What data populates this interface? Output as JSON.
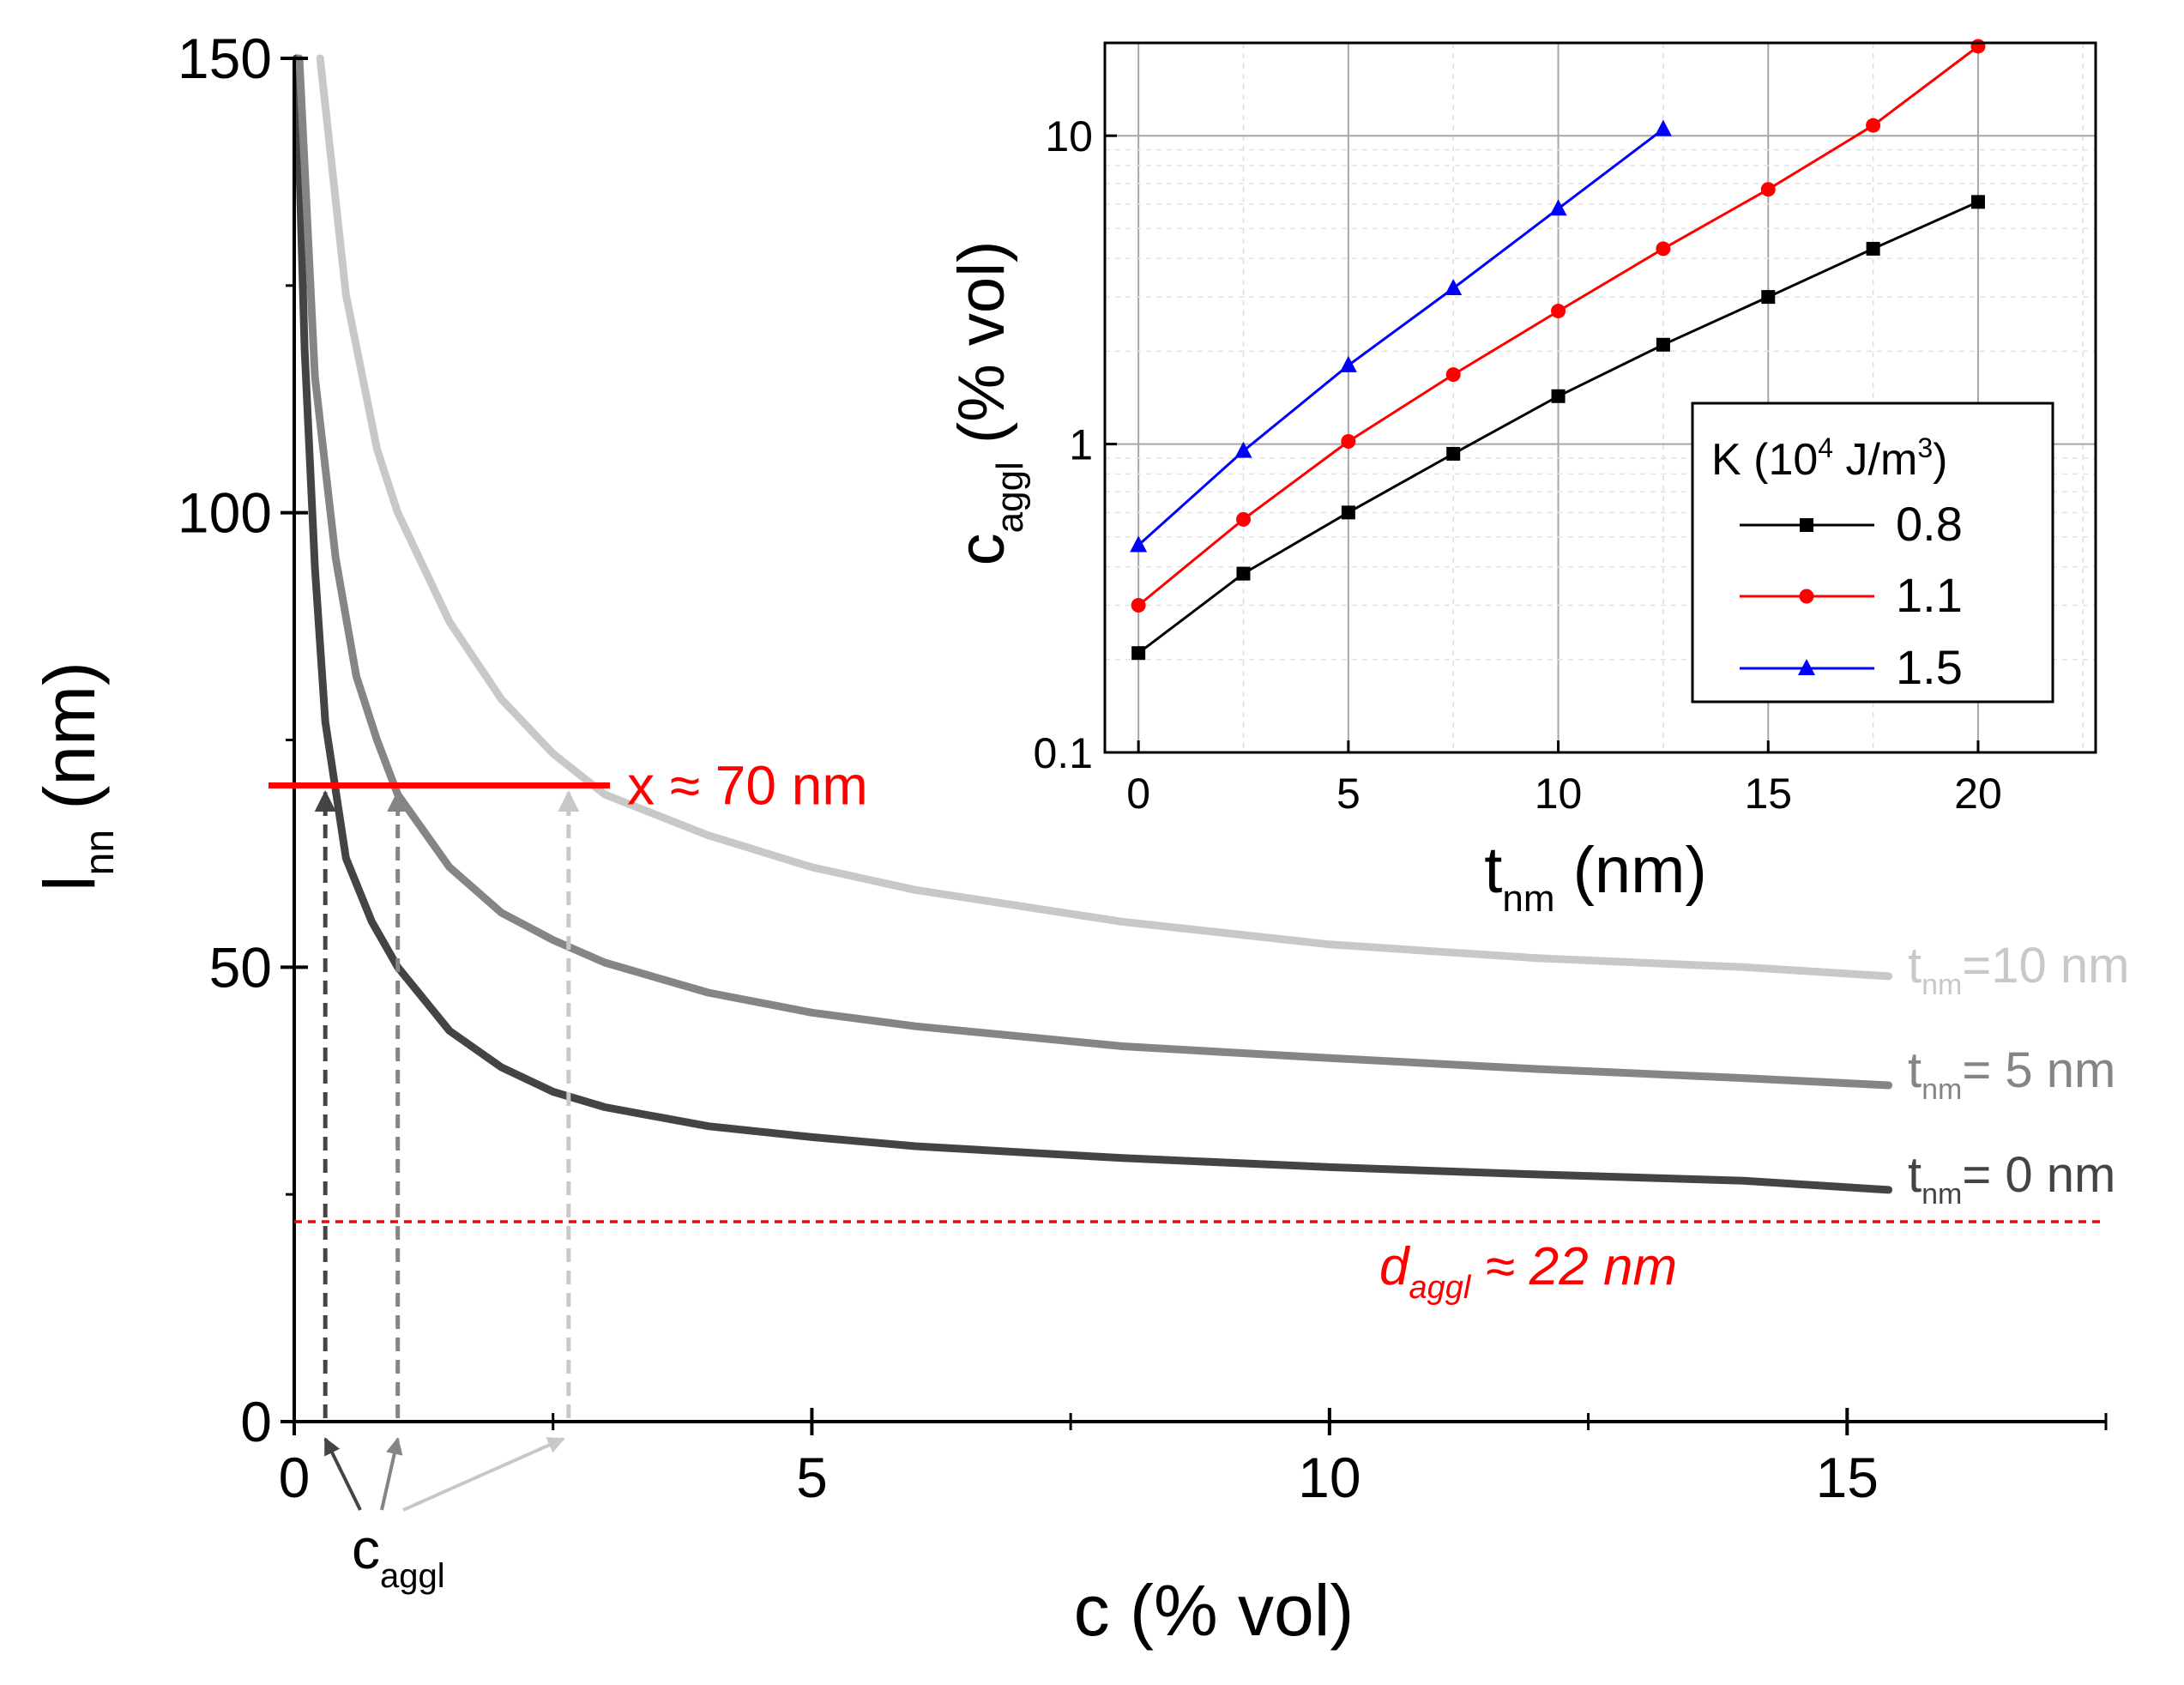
{
  "colors": {
    "curve_t0": "#444444",
    "curve_t5": "#858585",
    "curve_t10": "#c8c8c8",
    "red": "#ff0000",
    "black": "#000000",
    "blue": "#0000ff",
    "grid": "#a6a6a6"
  },
  "chart_data": [
    {
      "id": "main",
      "type": "line",
      "xlabel": {
        "main": "c (% vol)"
      },
      "ylabel": {
        "main": "l",
        "sub": "nn",
        "tail": " (nm)"
      },
      "xlim": [
        0,
        17.5
      ],
      "ylim": [
        0,
        150
      ],
      "x_ticks": [
        "0",
        "5",
        "10",
        "15"
      ],
      "x_tick_values": [
        0,
        5,
        10,
        15
      ],
      "y_ticks": [
        "0",
        "50",
        "100",
        "150"
      ],
      "y_tick_values": [
        0,
        50,
        100,
        150
      ],
      "series": [
        {
          "name": "t_nm = 0 nm",
          "label_main": "t",
          "label_sub": "nm",
          "label_tail": "= 0 nm",
          "x": [
            0.02,
            0.1,
            0.2,
            0.3,
            0.5,
            0.75,
            1,
            1.5,
            2,
            2.5,
            3,
            4,
            5,
            6,
            8,
            10,
            12,
            14,
            15.4
          ],
          "y": [
            150,
            118,
            94,
            77,
            62,
            55,
            50,
            43,
            39,
            36.3,
            34.6,
            32.5,
            31.3,
            30.3,
            29,
            28,
            27.2,
            26.5,
            25.5
          ]
        },
        {
          "name": "t_nm = 5 nm",
          "label_main": "t",
          "label_sub": "nm",
          "label_tail": "= 5 nm",
          "x": [
            0.05,
            0.2,
            0.4,
            0.6,
            0.8,
            1,
            1.5,
            2,
            2.5,
            3,
            4,
            5,
            6,
            8,
            10,
            12,
            14,
            15.4
          ],
          "y": [
            150,
            115,
            95,
            82,
            75,
            69,
            61,
            56,
            53,
            50.5,
            47.2,
            45,
            43.5,
            41.3,
            40,
            38.8,
            37.8,
            37
          ]
        },
        {
          "name": "t_nm = 10 nm",
          "label_main": "t",
          "label_sub": "nm",
          "label_tail": "=10 nm",
          "x": [
            0.25,
            0.5,
            0.8,
            1,
            1.5,
            2,
            2.5,
            3,
            4,
            5,
            6,
            8,
            10,
            12,
            14,
            15.4
          ],
          "y": [
            150,
            124,
            107,
            100,
            88,
            79.5,
            73.5,
            69,
            64.5,
            61,
            58.5,
            55,
            52.5,
            51,
            50,
            49
          ]
        }
      ],
      "annotations": {
        "x_line": {
          "y": 70,
          "x_start": 0,
          "x_end": 3.05,
          "text": "x ≈ 70 nm"
        },
        "d_aggl": {
          "y": 22,
          "main": "d",
          "sub": "aggl",
          "tail": " ≈ 22 nm"
        },
        "c_aggl_values": [
          0.3,
          1.0,
          2.65
        ],
        "c_aggl_label": {
          "main": "c",
          "sub": "aggl"
        }
      }
    },
    {
      "id": "inset",
      "type": "line",
      "y_scale": "log",
      "xlabel": {
        "main": "t",
        "sub": "nm",
        "tail": " (nm)"
      },
      "ylabel": {
        "main": "c",
        "sub": "aggl",
        "tail": " (% vol)"
      },
      "xlim": [
        -0.8,
        22.8
      ],
      "ylim": [
        0.1,
        20
      ],
      "x_ticks": [
        "0",
        "5",
        "10",
        "15",
        "20"
      ],
      "x_tick_values": [
        0,
        5,
        10,
        15,
        20
      ],
      "y_ticks": [
        "0.1",
        "1",
        "10"
      ],
      "y_tick_values": [
        0.1,
        1,
        10
      ],
      "grid": true,
      "legend": {
        "title_prefix": "K (10",
        "title_exp": "4",
        "title_mid": " J/m",
        "title_exp2": "3",
        "title_suffix": ")",
        "position": "lower-right"
      },
      "series": [
        {
          "name": "0.8",
          "marker": "square",
          "x": [
            0,
            2.5,
            5,
            7.5,
            10,
            12.5,
            15,
            17.5,
            20
          ],
          "y": [
            0.21,
            0.38,
            0.6,
            0.93,
            1.43,
            2.1,
            3.0,
            4.3,
            6.1
          ]
        },
        {
          "name": "1.1",
          "marker": "circle",
          "x": [
            0,
            2.5,
            5,
            7.5,
            10,
            12.5,
            15,
            17.5,
            20
          ],
          "y": [
            0.3,
            0.57,
            1.02,
            1.68,
            2.7,
            4.3,
            6.7,
            10.8,
            19.5
          ]
        },
        {
          "name": "1.5",
          "marker": "triangle",
          "x": [
            0,
            2.5,
            5,
            7.5,
            10,
            12.5
          ],
          "y": [
            0.47,
            0.95,
            1.8,
            3.2,
            5.8,
            10.5
          ]
        }
      ]
    }
  ]
}
